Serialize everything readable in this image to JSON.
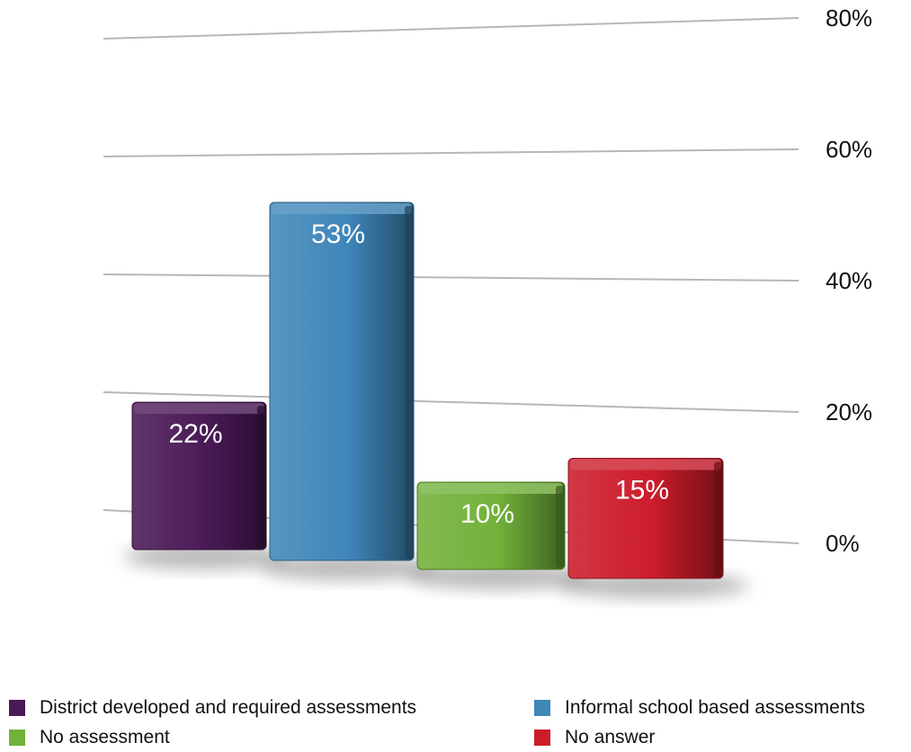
{
  "chart_data": {
    "type": "bar",
    "categories": [
      "District developed and required assessments",
      "Informal school based assessments",
      "No assessment",
      "No answer"
    ],
    "values": [
      22,
      53,
      10,
      15
    ],
    "data_labels": [
      "22%",
      "53%",
      "10%",
      "15%"
    ],
    "yticks": [
      0,
      20,
      40,
      60,
      80
    ],
    "ytick_labels": [
      "0%",
      "20%",
      "40%",
      "60%",
      "80%"
    ],
    "ylim": [
      0,
      80
    ],
    "grid": true,
    "legend_position": "bottom",
    "colors": [
      "#4a1a57",
      "#3f86b9",
      "#72b13a",
      "#cc1c2b"
    ],
    "legend": {
      "items": [
        {
          "label": "District developed and required assessments",
          "color": "#4a1a57"
        },
        {
          "label": "Informal school based assessments",
          "color": "#3f86b9"
        },
        {
          "label": "No assessment",
          "color": "#72b13a"
        },
        {
          "label": "No answer",
          "color": "#cc1c2b"
        }
      ]
    }
  }
}
